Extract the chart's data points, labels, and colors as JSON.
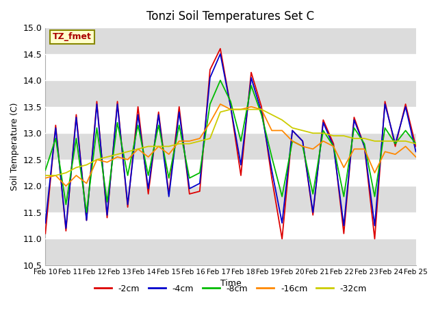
{
  "title": "Tonzi Soil Temperatures Set C",
  "xlabel": "Time",
  "ylabel": "Soil Temperature (C)",
  "ylim": [
    10.5,
    15.0
  ],
  "annotation": "TZ_fmet",
  "plot_bg_color": "#ffffff",
  "band_color": "#dcdcdc",
  "colors": {
    "-2cm": "#dd0000",
    "-4cm": "#0000cc",
    "-8cm": "#00bb00",
    "-16cm": "#ff8800",
    "-32cm": "#cccc00"
  },
  "x_labels": [
    "Feb 10",
    "Feb 11",
    "Feb 12",
    "Feb 13",
    "Feb 14",
    "Feb 15",
    "Feb 16",
    "Feb 17",
    "Feb 18",
    "Feb 19",
    "Feb 20",
    "Feb 21",
    "Feb 22",
    "Feb 23",
    "Feb 24",
    "Feb 25"
  ],
  "yticks": [
    10.5,
    11.0,
    11.5,
    12.0,
    12.5,
    13.0,
    13.5,
    14.0,
    14.5,
    15.0
  ],
  "series": {
    "-2cm": [
      11.1,
      13.15,
      11.15,
      13.35,
      11.35,
      13.6,
      11.4,
      13.6,
      11.6,
      13.5,
      11.85,
      13.4,
      11.85,
      13.5,
      11.85,
      11.9,
      14.2,
      14.6,
      13.5,
      12.2,
      14.15,
      13.5,
      12.15,
      11.0,
      13.05,
      12.85,
      11.45,
      13.25,
      12.8,
      11.1,
      13.3,
      12.75,
      11.0,
      13.6,
      12.75,
      13.55,
      12.75
    ],
    "-4cm": [
      11.3,
      13.1,
      11.2,
      13.3,
      11.35,
      13.55,
      11.45,
      13.55,
      11.65,
      13.35,
      11.95,
      13.35,
      11.8,
      13.4,
      11.95,
      12.05,
      14.05,
      14.5,
      13.5,
      12.4,
      14.05,
      13.4,
      12.3,
      11.3,
      13.05,
      12.85,
      11.5,
      13.2,
      12.75,
      11.25,
      13.25,
      12.75,
      11.25,
      13.55,
      12.8,
      13.5,
      12.65
    ],
    "-8cm": [
      12.3,
      12.9,
      11.65,
      12.9,
      11.5,
      13.1,
      11.7,
      13.2,
      12.2,
      13.15,
      12.2,
      13.15,
      12.15,
      13.15,
      12.15,
      12.25,
      13.55,
      14.0,
      13.6,
      12.85,
      13.9,
      13.35,
      12.55,
      11.8,
      12.85,
      12.75,
      11.85,
      13.05,
      12.75,
      11.8,
      13.1,
      12.8,
      11.8,
      13.1,
      12.8,
      13.05,
      12.8
    ],
    "-16cm": [
      12.15,
      12.2,
      12.0,
      12.2,
      12.05,
      12.5,
      12.45,
      12.55,
      12.5,
      12.7,
      12.55,
      12.75,
      12.6,
      12.85,
      12.85,
      12.9,
      13.2,
      13.55,
      13.45,
      13.45,
      13.5,
      13.45,
      13.05,
      13.05,
      12.85,
      12.75,
      12.7,
      12.85,
      12.75,
      12.35,
      12.7,
      12.7,
      12.25,
      12.65,
      12.6,
      12.75,
      12.55
    ],
    "-32cm": [
      12.2,
      12.2,
      12.25,
      12.35,
      12.4,
      12.5,
      12.55,
      12.6,
      12.65,
      12.7,
      12.75,
      12.75,
      12.75,
      12.8,
      12.8,
      12.85,
      12.9,
      13.4,
      13.45,
      13.45,
      13.45,
      13.45,
      13.35,
      13.25,
      13.1,
      13.05,
      13.0,
      13.0,
      12.95,
      12.95,
      12.9,
      12.9,
      12.85,
      12.85,
      12.85,
      12.85,
      12.8
    ]
  }
}
